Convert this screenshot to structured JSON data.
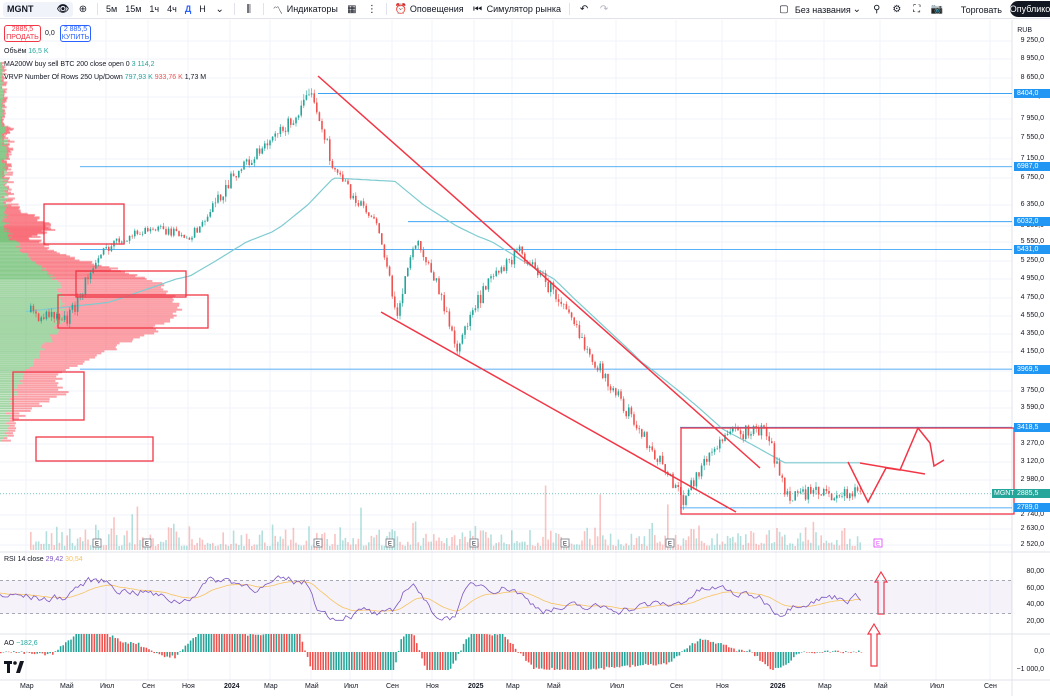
{
  "toolbar": {
    "symbol": "MGNT",
    "timeframes": [
      "5м",
      "15м",
      "1ч",
      "4ч",
      "Д",
      "Н"
    ],
    "active_timeframe": "Д",
    "indicators_label": "Индикаторы",
    "alerts_label": "Оповещения",
    "replay_label": "Симулятор рынка",
    "layout_name": "Без названия",
    "trade_label": "Торговать",
    "publish_label": "Опублико"
  },
  "trade_panel": {
    "sell_price": "2885,5",
    "sell_label": "ПРОДАТЬ",
    "spread": "0,0",
    "buy_price": "2 885,5",
    "buy_label": "КУПИТЬ"
  },
  "legend": {
    "volume_label": "Объём",
    "volume_value": "16,5 K",
    "ma_label": "MA200W buy sell BTC 200 close open 0",
    "ma_value": "3 114,2",
    "vrvp_label": "VRVP Number Of Rows 250 Up/Down",
    "vrvp_up": "797,93 K",
    "vrvp_down": "933,76 K",
    "vrvp_total": "1,73 M",
    "rsi_label": "RSI 14 close",
    "rsi_value": "29,42",
    "rsi_ma": "30,54",
    "ao_label": "AO",
    "ao_value": "−182,6"
  },
  "axis": {
    "currency": "RUB",
    "price_ticks": [
      "9 250,0",
      "8 950,0",
      "8 650,0",
      "8 350,0",
      "7 950,0",
      "7 550,0",
      "7 150,0",
      "6 750,0",
      "6 350,0",
      "5 950,0",
      "5 550,0",
      "5 250,0",
      "4 950,0",
      "4 750,0",
      "4 550,0",
      "4 350,0",
      "4 150,0",
      "3 950,0",
      "3 750,0",
      "3 590,0",
      "3 270,0",
      "3 120,0",
      "2 980,0",
      "2 740,0",
      "2 630,0",
      "2 520,0"
    ],
    "level_labels": [
      "8404,0",
      "6987,0",
      "6032,0",
      "5431,0",
      "3969,5",
      "3418,5",
      "2789,0"
    ],
    "current_price": "2885,5",
    "symbol_tag": "MGNT",
    "rsi_ticks": [
      "80,00",
      "60,00",
      "40,00",
      "20,00"
    ],
    "ao_ticks": [
      "0,0",
      "−1 000,0"
    ],
    "time_labels": [
      "Мар",
      "Май",
      "Июл",
      "Сен",
      "Ноя",
      "2024",
      "Мар",
      "Май",
      "Июл",
      "Сен",
      "Ноя",
      "2025",
      "Мар",
      "Май",
      "Июл",
      "Сен",
      "Ноя",
      "2026",
      "Мар",
      "Май",
      "Июл",
      "Сен"
    ]
  },
  "colors": {
    "up": "#26a69a",
    "down": "#ef5350",
    "drawing": "#f23645",
    "level": "#2196f3",
    "ma": "#7ecbd0",
    "rsi": "#7e57c2",
    "rsi_ma": "#f7c35f"
  },
  "chart_data": {
    "type": "line",
    "title": "",
    "price_line": {
      "x": [
        "2023-03",
        "2023-05",
        "2023-07",
        "2023-09",
        "2023-11",
        "2024-01",
        "2024-03",
        "2024-05",
        "2024-06",
        "2024-08",
        "2024-09",
        "2024-10",
        "2024-12",
        "2025-01",
        "2025-03",
        "2025-05",
        "2025-07",
        "2025-09",
        "2025-11",
        "2026-01",
        "2026-03",
        "2026-04"
      ],
      "values": [
        4600,
        4500,
        5500,
        5900,
        5700,
        6800,
        7500,
        8400,
        6900,
        6000,
        4500,
        5600,
        4200,
        4700,
        5400,
        4700,
        3950,
        3350,
        2850,
        3350,
        3400,
        2885
      ]
    },
    "levels": [
      8404,
      6987,
      6032,
      5431,
      3969.5,
      3418.5,
      2789
    ],
    "ma_line": {
      "x": [
        "2023-03",
        "2023-07",
        "2023-11",
        "2024-03",
        "2024-06",
        "2024-09",
        "2025-01",
        "2025-05",
        "2025-09",
        "2026-01",
        "2026-04"
      ],
      "values": [
        4600,
        4700,
        5000,
        5800,
        6750,
        6700,
        5700,
        4900,
        4050,
        3400,
        3114
      ]
    },
    "rsi": {
      "range": [
        20,
        80
      ],
      "bands": [
        30,
        70
      ],
      "last": 29.42,
      "ma_last": 30.54
    },
    "ao": {
      "last": -182.6
    }
  }
}
